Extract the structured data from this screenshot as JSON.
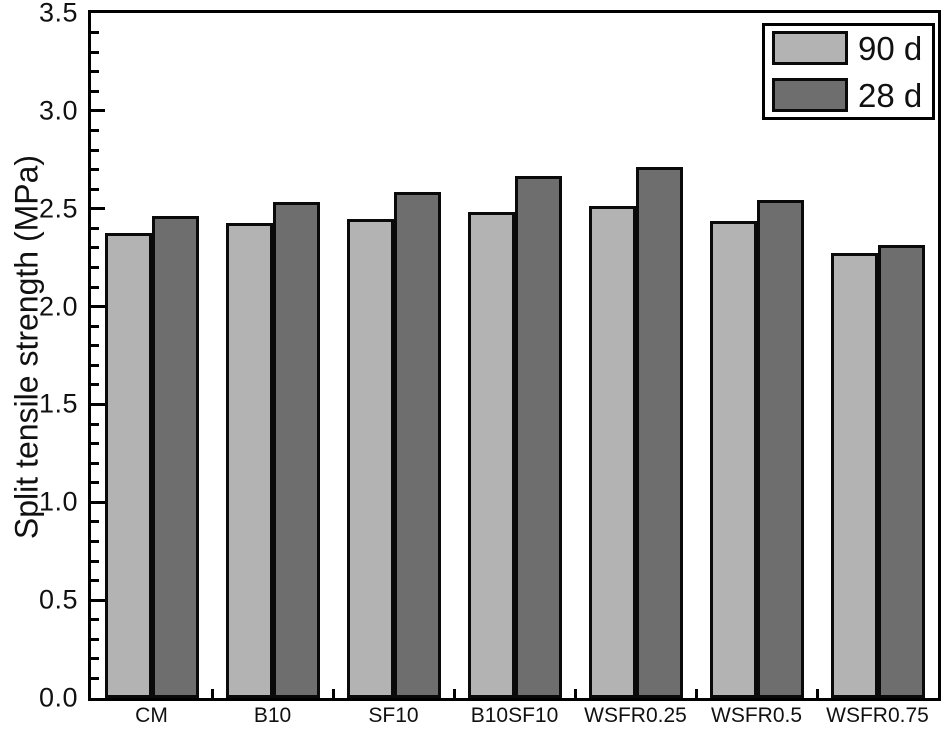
{
  "figure": {
    "background": "#ffffff",
    "axis_color": "#000000",
    "text_color": "#111111"
  },
  "chart_data": {
    "type": "bar",
    "title": "",
    "xlabel": "",
    "ylabel": "Split tensile strength (MPa)",
    "categories": [
      "CM",
      "B10",
      "SF10",
      "B10SF10",
      "WSFR0.25",
      "WSFR0.5",
      "WSFR0.75"
    ],
    "series": [
      {
        "name": "90 d",
        "color": "#b3b3b3",
        "values": [
          2.36,
          2.41,
          2.43,
          2.47,
          2.5,
          2.42,
          2.26
        ]
      },
      {
        "name": "28 d",
        "color": "#6e6e6e",
        "values": [
          2.45,
          2.52,
          2.57,
          2.65,
          2.7,
          2.53,
          2.3
        ]
      }
    ],
    "ylim": [
      0.0,
      3.5
    ],
    "ytick_step": 0.5,
    "yminor_step": 0.1,
    "ytick_labels": [
      "0.0",
      "0.5",
      "1.0",
      "1.5",
      "2.0",
      "2.5",
      "3.0",
      "3.5"
    ],
    "bar_border_color": "#0a0a0a",
    "grid": false,
    "legend_position": "top-right",
    "legend_entries": [
      "90 d",
      "28 d"
    ]
  }
}
